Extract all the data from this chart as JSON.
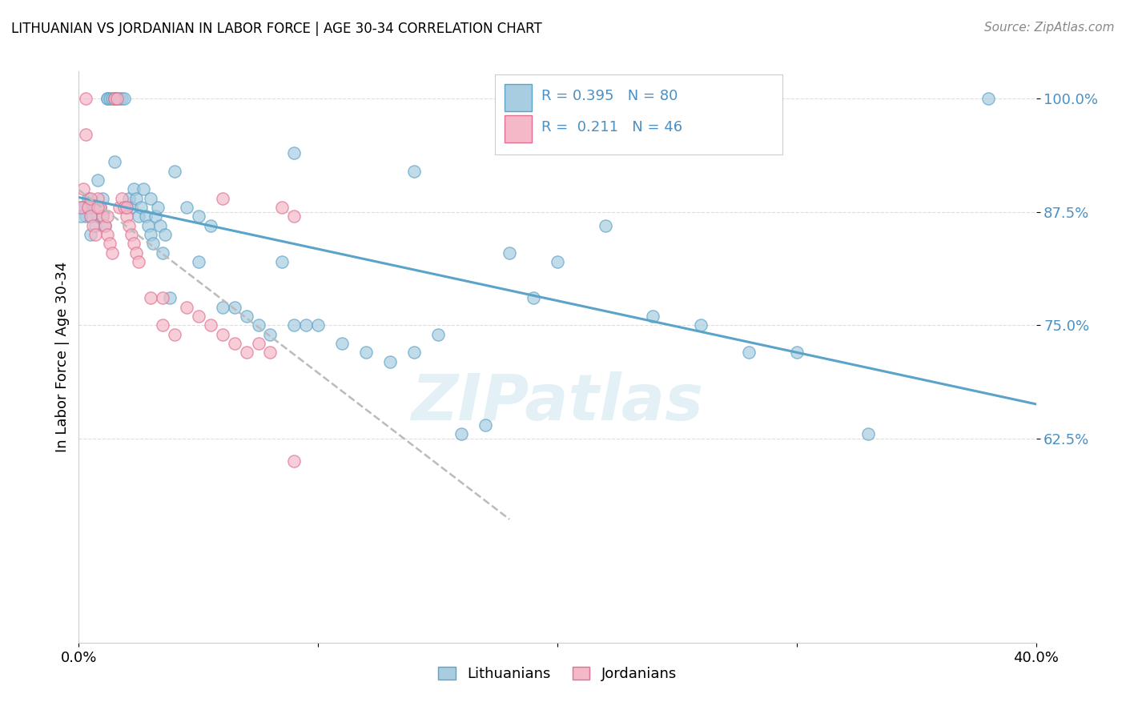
{
  "title": "LITHUANIAN VS JORDANIAN IN LABOR FORCE | AGE 30-34 CORRELATION CHART",
  "source": "Source: ZipAtlas.com",
  "ylabel": "In Labor Force | Age 30-34",
  "xlim": [
    0.0,
    0.4
  ],
  "ylim": [
    0.4,
    1.03
  ],
  "yticks": [
    0.625,
    0.75,
    0.875,
    1.0
  ],
  "ytick_labels": [
    "62.5%",
    "75.0%",
    "87.5%",
    "100.0%"
  ],
  "xticks": [
    0.0,
    0.1,
    0.2,
    0.3,
    0.4
  ],
  "xtick_labels": [
    "0.0%",
    "",
    "",
    "",
    "40.0%"
  ],
  "blue_face_color": "#a8cce0",
  "blue_edge_color": "#5ba3c9",
  "pink_face_color": "#f5b8c8",
  "pink_edge_color": "#e07090",
  "blue_label": "Lithuanians",
  "pink_label": "Jordanians",
  "watermark": "ZIPatlas",
  "blue_R": 0.395,
  "blue_N": 80,
  "pink_R": 0.211,
  "pink_N": 46,
  "blue_scatter_x": [
    0.001,
    0.002,
    0.003,
    0.003,
    0.004,
    0.005,
    0.006,
    0.007,
    0.008,
    0.009,
    0.01,
    0.01,
    0.011,
    0.012,
    0.012,
    0.013,
    0.014,
    0.015,
    0.015,
    0.016,
    0.017,
    0.018,
    0.019,
    0.02,
    0.021,
    0.022,
    0.023,
    0.024,
    0.025,
    0.026,
    0.027,
    0.028,
    0.029,
    0.03,
    0.031,
    0.032,
    0.033,
    0.034,
    0.035,
    0.036,
    0.038,
    0.04,
    0.045,
    0.05,
    0.055,
    0.06,
    0.065,
    0.07,
    0.075,
    0.08,
    0.085,
    0.09,
    0.095,
    0.1,
    0.11,
    0.12,
    0.13,
    0.14,
    0.15,
    0.16,
    0.17,
    0.18,
    0.19,
    0.2,
    0.22,
    0.24,
    0.26,
    0.28,
    0.3,
    0.33,
    0.14,
    0.09,
    0.05,
    0.03,
    0.015,
    0.008,
    0.005,
    0.002,
    0.001,
    0.38
  ],
  "blue_scatter_y": [
    0.88,
    0.88,
    0.88,
    0.87,
    0.89,
    0.85,
    0.88,
    0.86,
    0.87,
    0.88,
    0.89,
    0.87,
    0.86,
    1.0,
    1.0,
    1.0,
    1.0,
    1.0,
    1.0,
    1.0,
    1.0,
    1.0,
    1.0,
    0.88,
    0.89,
    0.88,
    0.9,
    0.89,
    0.87,
    0.88,
    0.9,
    0.87,
    0.86,
    0.85,
    0.84,
    0.87,
    0.88,
    0.86,
    0.83,
    0.85,
    0.78,
    0.92,
    0.88,
    0.82,
    0.86,
    0.77,
    0.77,
    0.76,
    0.75,
    0.74,
    0.82,
    0.75,
    0.75,
    0.75,
    0.73,
    0.72,
    0.71,
    0.72,
    0.74,
    0.63,
    0.64,
    0.83,
    0.78,
    0.82,
    0.86,
    0.76,
    0.75,
    0.72,
    0.72,
    0.63,
    0.92,
    0.94,
    0.87,
    0.89,
    0.93,
    0.91,
    0.87,
    0.88,
    0.87,
    1.0
  ],
  "pink_scatter_x": [
    0.001,
    0.002,
    0.003,
    0.004,
    0.005,
    0.006,
    0.007,
    0.008,
    0.009,
    0.01,
    0.011,
    0.012,
    0.013,
    0.014,
    0.015,
    0.016,
    0.017,
    0.018,
    0.019,
    0.02,
    0.021,
    0.022,
    0.023,
    0.024,
    0.025,
    0.03,
    0.035,
    0.04,
    0.045,
    0.05,
    0.055,
    0.06,
    0.065,
    0.07,
    0.075,
    0.08,
    0.085,
    0.09,
    0.003,
    0.005,
    0.008,
    0.012,
    0.02,
    0.035,
    0.06,
    0.09
  ],
  "pink_scatter_y": [
    0.88,
    0.9,
    1.0,
    0.88,
    0.87,
    0.86,
    0.85,
    0.89,
    0.88,
    0.87,
    0.86,
    0.85,
    0.84,
    0.83,
    1.0,
    1.0,
    0.88,
    0.89,
    0.88,
    0.87,
    0.86,
    0.85,
    0.84,
    0.83,
    0.82,
    0.78,
    0.75,
    0.74,
    0.77,
    0.76,
    0.75,
    0.74,
    0.73,
    0.72,
    0.73,
    0.72,
    0.88,
    0.87,
    0.96,
    0.89,
    0.88,
    0.87,
    0.88,
    0.78,
    0.89,
    0.6
  ]
}
